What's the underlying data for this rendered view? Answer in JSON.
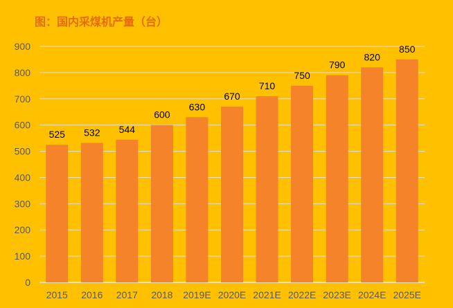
{
  "chart_data": {
    "type": "bar",
    "title": "图：国内采煤机产量（台）",
    "categories": [
      "2015",
      "2016",
      "2017",
      "2018",
      "2019E",
      "2020E",
      "2021E",
      "2022E",
      "2023E",
      "2024E",
      "2025E"
    ],
    "values": [
      525,
      532,
      544,
      600,
      630,
      670,
      710,
      750,
      790,
      820,
      850
    ],
    "ylim": [
      0,
      900
    ],
    "yticks": [
      0,
      100,
      200,
      300,
      400,
      500,
      600,
      700,
      800,
      900
    ],
    "grid": true,
    "colors": {
      "background": "#FFC000",
      "bar": "#F5832A",
      "title": "#E46C0A",
      "grid": "#E8E0C8",
      "tick": "#595959",
      "label": "#000000"
    }
  }
}
